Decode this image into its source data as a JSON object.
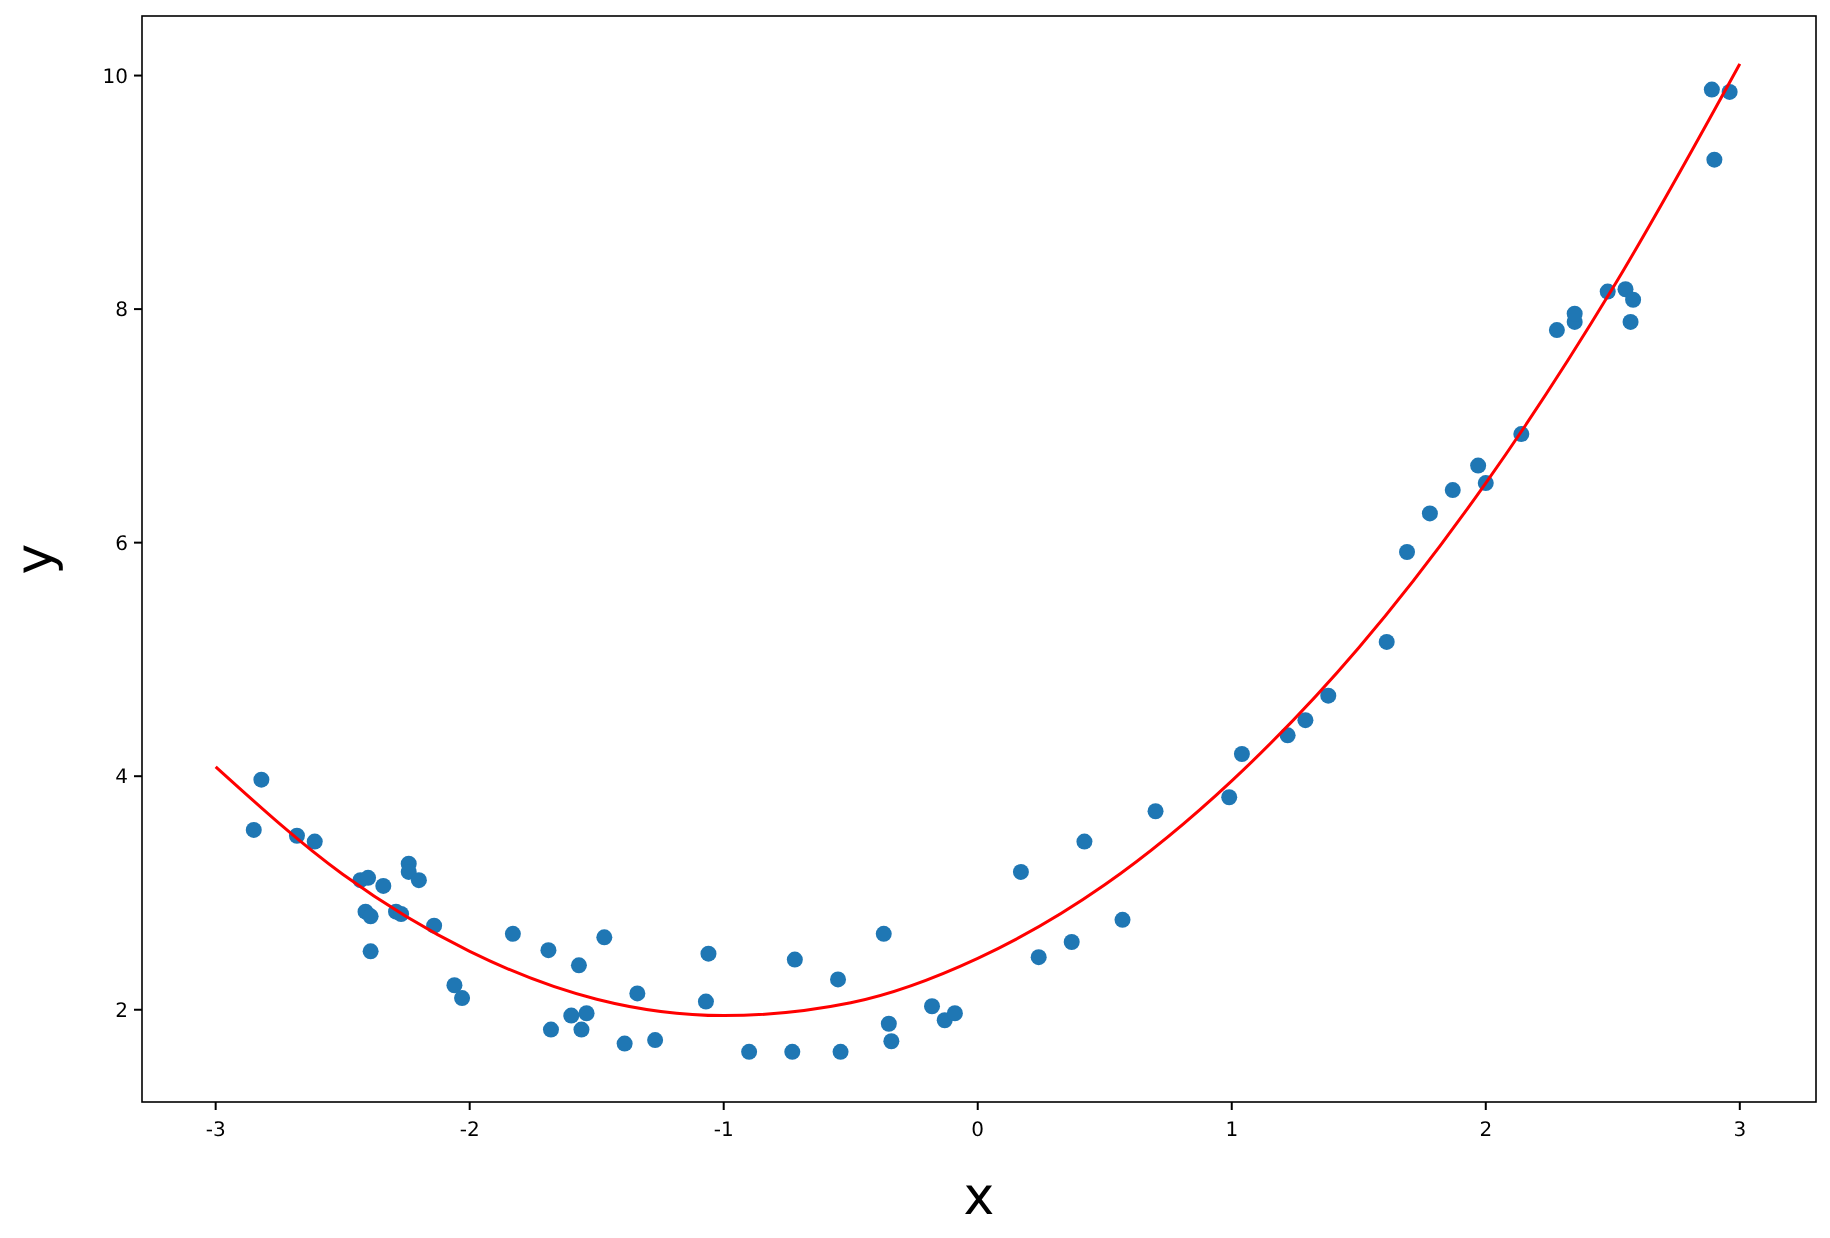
{
  "chart_data": {
    "type": "scatter",
    "xlabel": "x",
    "ylabel": "y",
    "xlim": [
      -3.29,
      3.3
    ],
    "ylim": [
      1.21,
      10.51
    ],
    "xticks": [
      -3,
      -2,
      -1,
      0,
      1,
      2,
      3
    ],
    "yticks": [
      2,
      4,
      6,
      8,
      10
    ],
    "series": [
      {
        "color": "#1f77b4",
        "marker": "circle",
        "x": [
          -2.85,
          -2.82,
          -2.68,
          -2.61,
          -2.43,
          -2.4,
          -2.41,
          -2.39,
          -2.39,
          -2.34,
          -2.29,
          -2.27,
          -2.24,
          -2.24,
          -2.2,
          -2.14,
          -2.06,
          -2.03,
          -1.83,
          -1.69,
          -1.68,
          -1.6,
          -1.57,
          -1.56,
          -1.54,
          -1.47,
          -1.39,
          -1.34,
          -1.27,
          -1.07,
          -1.06,
          -0.9,
          -0.73,
          -0.72,
          -0.55,
          -0.54,
          -0.37,
          -0.35,
          -0.34,
          -0.18,
          -0.13,
          -0.09,
          0.17,
          0.24,
          0.37,
          0.42,
          0.57,
          0.7,
          0.99,
          1.04,
          1.22,
          1.29,
          1.38,
          1.61,
          1.69,
          1.78,
          1.87,
          1.97,
          2.0,
          2.14,
          2.28,
          2.35,
          2.35,
          2.48,
          2.55,
          2.57,
          2.58,
          2.89,
          2.9,
          2.96
        ],
        "values": [
          3.54,
          3.97,
          3.49,
          3.44,
          3.11,
          3.13,
          2.84,
          2.8,
          2.5,
          3.06,
          2.84,
          2.82,
          3.25,
          3.18,
          3.11,
          2.72,
          2.21,
          2.1,
          2.65,
          2.51,
          1.83,
          1.95,
          2.38,
          1.83,
          1.97,
          2.62,
          1.71,
          2.14,
          1.74,
          2.07,
          2.48,
          1.64,
          1.64,
          2.43,
          2.26,
          1.64,
          2.65,
          1.88,
          1.73,
          2.03,
          1.91,
          1.97,
          3.18,
          2.45,
          2.58,
          3.44,
          2.77,
          3.7,
          3.82,
          4.19,
          4.35,
          4.48,
          4.69,
          5.15,
          5.92,
          6.25,
          6.45,
          6.66,
          6.51,
          6.93,
          7.82,
          7.89,
          7.96,
          8.15,
          8.17,
          7.89,
          8.08,
          9.88,
          9.28,
          9.86
        ]
      },
      {
        "type": "line",
        "color": "#ff0000",
        "marker": "none",
        "line_style": "solid",
        "x": [
          -3,
          -2.5,
          -2,
          -1.5,
          -1,
          -0.5,
          0,
          0.5,
          1,
          1.5,
          2,
          2.5,
          3
        ],
        "values": [
          4.08,
          3.16,
          2.5,
          2.09,
          1.95,
          2.06,
          2.44,
          3.07,
          3.96,
          5.1,
          6.51,
          8.18,
          10.1
        ]
      }
    ]
  }
}
